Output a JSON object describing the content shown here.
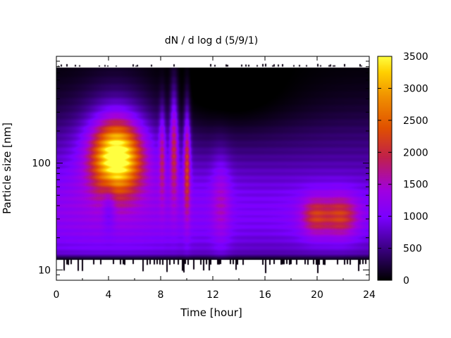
{
  "chart_data": {
    "type": "heatmap",
    "title": "dN / d log d (5/9/1)",
    "xlabel": "Time [hour]",
    "ylabel": "Particle size [nm]",
    "xlim": [
      0,
      24
    ],
    "ylim": [
      8,
      1000
    ],
    "yscale": "log",
    "x_ticks": [
      0,
      4,
      8,
      12,
      16,
      20,
      24
    ],
    "x_tick_labels": [
      "0",
      "4",
      "8",
      "12",
      "16",
      "20",
      "24"
    ],
    "y_ticks": [
      10,
      100
    ],
    "y_tick_labels": [
      "10",
      "100"
    ],
    "colorbar": {
      "min": 0,
      "max": 3500,
      "ticks": [
        0,
        500,
        1000,
        1500,
        2000,
        2500,
        3000,
        3500
      ],
      "tick_labels": [
        "0",
        "500",
        "1000",
        "1500",
        "2000",
        "2500",
        "3000",
        "3500"
      ],
      "palette": [
        "#000000",
        "#3a0080",
        "#7a00ff",
        "#a000e0",
        "#c0204a",
        "#e05000",
        "#f09000",
        "#ffe800",
        "#ffff40"
      ]
    },
    "data_extent": {
      "time": [
        0,
        24
      ],
      "size_nm": [
        12.5,
        790
      ]
    },
    "features": [
      {
        "time": 4.5,
        "size_nm": 110,
        "value": 3300
      },
      {
        "time": 9.0,
        "size_nm": 170,
        "value": 2100
      },
      {
        "time": 10.0,
        "size_nm": 120,
        "value": 1900
      },
      {
        "time": 19.8,
        "size_nm": 32,
        "value": 1900
      },
      {
        "time": 21.8,
        "size_nm": 32,
        "value": 2000
      }
    ],
    "grid": false
  }
}
